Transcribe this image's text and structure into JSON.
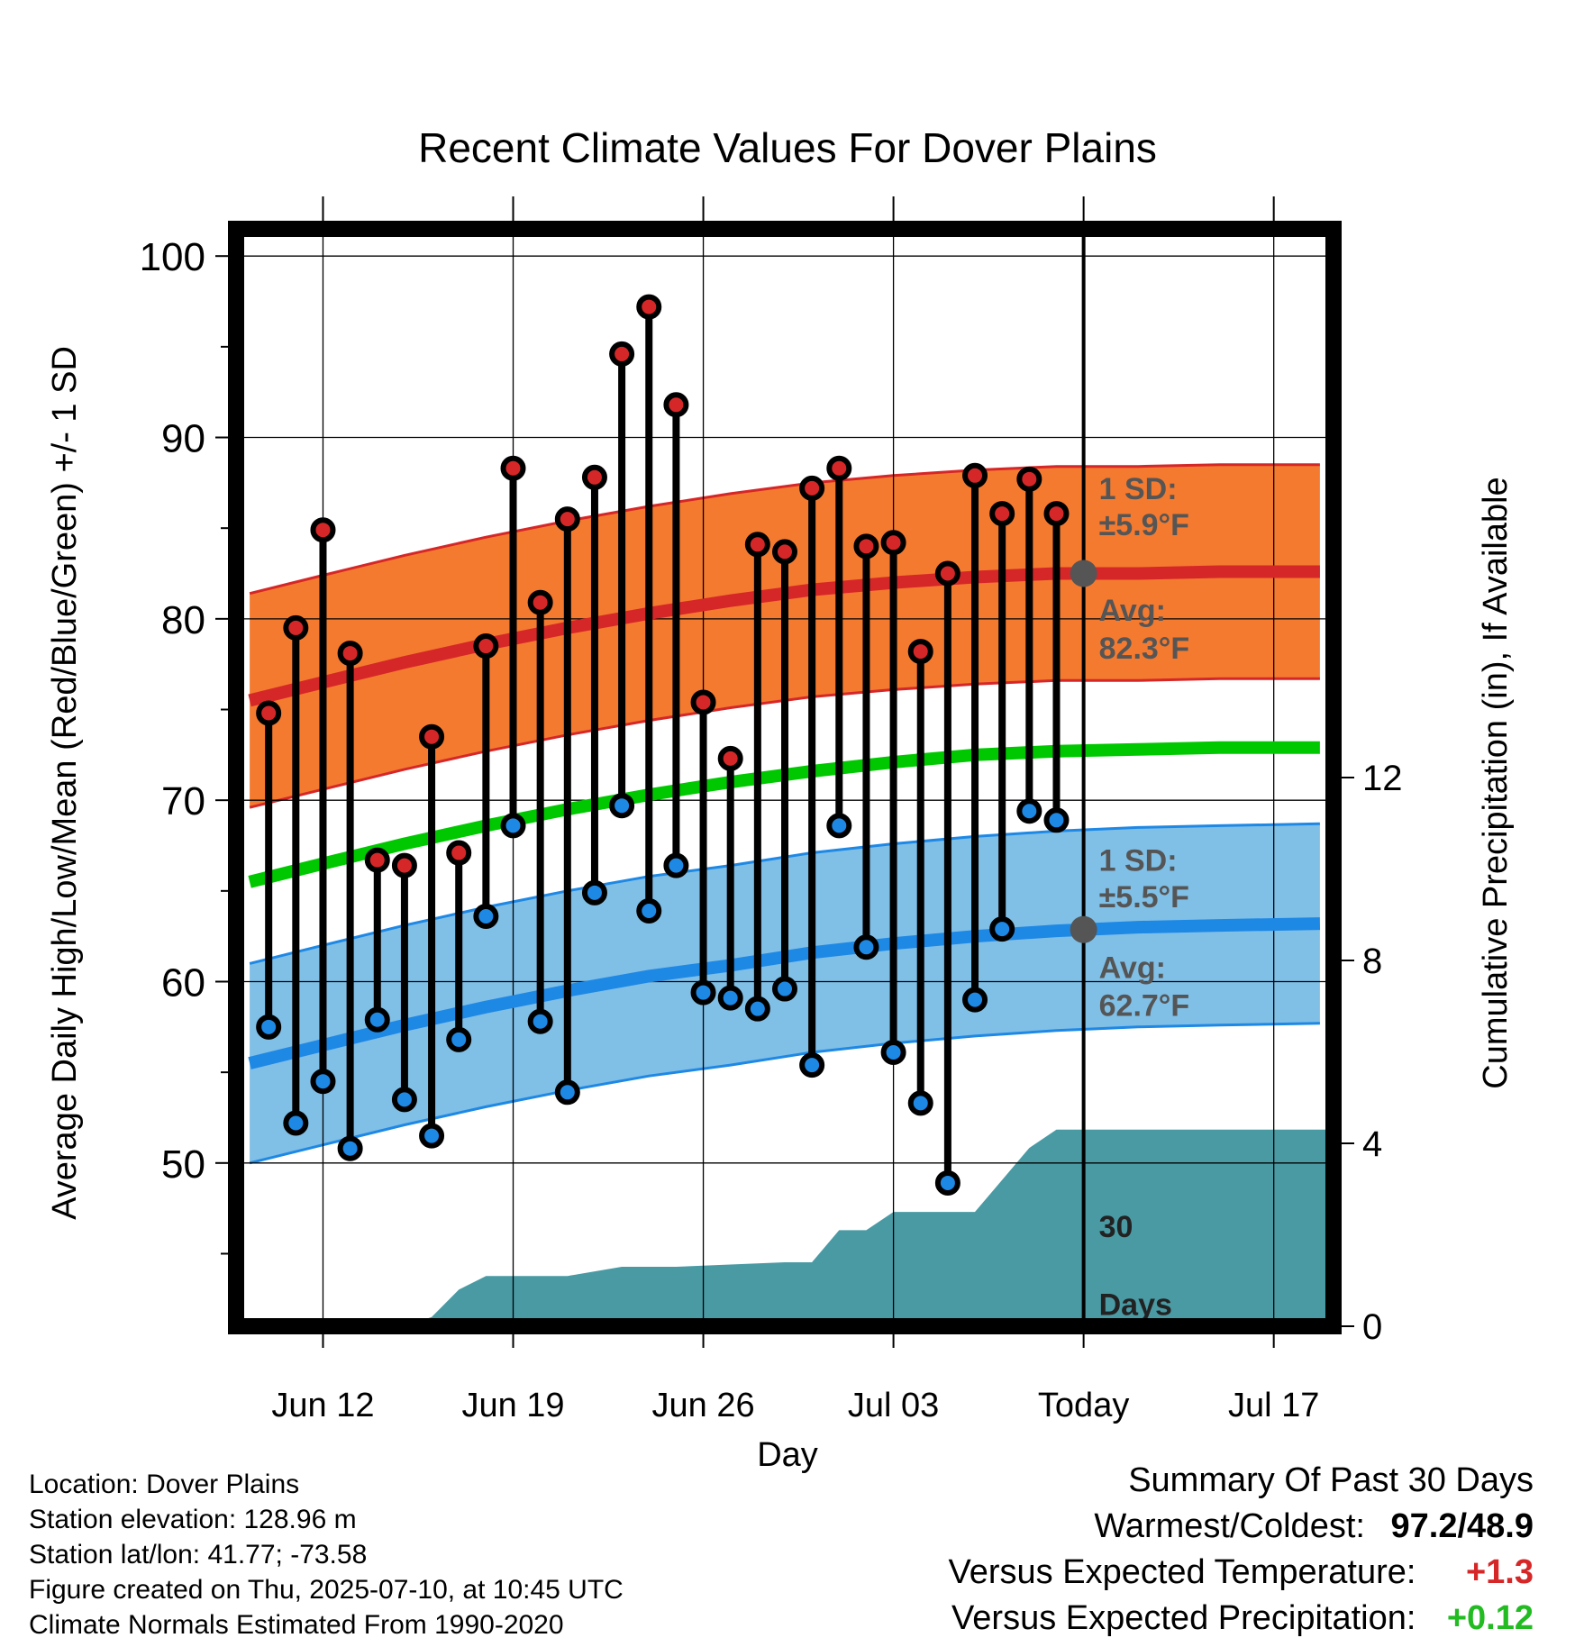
{
  "chart_data": {
    "type": "line",
    "title": "Recent Climate Values For Dover Plains",
    "xlabel": "Day",
    "ylabel": "Average Daily High/Low/Mean (Red/Blue/Green) +/- 1 SD",
    "y2label": "Cumulative Precipitation (in), If Available",
    "x_tick_labels": [
      "Jun 12",
      "Jun 19",
      "Jun 26",
      "Jul 03",
      "Today",
      "Jul 17"
    ],
    "y_ticks": [
      50,
      60,
      70,
      80,
      90,
      100
    ],
    "y2_ticks": [
      0,
      4,
      8,
      12
    ],
    "ylim": [
      41,
      101.5
    ],
    "y2lim": [
      0,
      24
    ],
    "xlim_days_from_jun12": [
      -3.2,
      37.2
    ],
    "today_label": "30\nDays",
    "grid": true,
    "colors": {
      "high": "#d62728",
      "high_band": "#f47a30",
      "low": "#1e88e5",
      "low_band": "#80bfe6",
      "mean": "#00c800",
      "precip": "#4a9aa4",
      "marker_gray": "#555555"
    },
    "annotations": {
      "high_sd_line1": "1 SD:",
      "high_sd_line2": "±5.9°F",
      "high_avg_line1": "Avg:",
      "high_avg_line2": "82.3°F",
      "low_sd_line1": "1 SD:",
      "low_sd_line2": "±5.5°F",
      "low_avg_line1": "Avg:",
      "low_avg_line2": "62.7°F",
      "today_line1": "30",
      "today_line2": "Days"
    },
    "normals": {
      "days": [
        -2.7,
        0,
        3,
        6,
        9,
        12,
        15,
        18,
        21,
        24,
        27,
        30,
        33,
        36.7
      ],
      "high_avg": [
        75.5,
        76.5,
        77.6,
        78.6,
        79.5,
        80.3,
        81.0,
        81.6,
        82.0,
        82.3,
        82.5,
        82.5,
        82.6,
        82.6
      ],
      "high_sd": 5.9,
      "low_avg": [
        55.5,
        56.5,
        57.6,
        58.6,
        59.5,
        60.3,
        60.9,
        61.6,
        62.1,
        62.5,
        62.8,
        63.0,
        63.1,
        63.2
      ],
      "low_sd": 5.5,
      "mean_avg": [
        65.5,
        66.5,
        67.6,
        68.6,
        69.5,
        70.3,
        71.0,
        71.6,
        72.1,
        72.5,
        72.7,
        72.8,
        72.9,
        72.9
      ]
    },
    "series": [
      {
        "name": "Daily High",
        "days": [
          -2,
          -1,
          0,
          1,
          2,
          3,
          4,
          5,
          6,
          7,
          8,
          9,
          10,
          11,
          12,
          13,
          14,
          15,
          16,
          17,
          18,
          19,
          20,
          21,
          22,
          23,
          24,
          25,
          26,
          27,
          28
        ],
        "values": [
          74.8,
          79.5,
          84.9,
          78.1,
          66.7,
          66.4,
          73.5,
          67.1,
          78.5,
          88.3,
          80.9,
          85.5,
          87.8,
          94.6,
          97.2,
          91.8,
          75.4,
          72.3,
          84.1,
          83.7,
          87.2,
          88.3,
          84.0,
          84.2,
          78.2,
          82.5,
          87.9,
          85.8,
          87.7,
          85.8,
          null
        ]
      },
      {
        "name": "Daily Low",
        "days": [
          -2,
          -1,
          0,
          1,
          2,
          3,
          4,
          5,
          6,
          7,
          8,
          9,
          10,
          11,
          12,
          13,
          14,
          15,
          16,
          17,
          18,
          19,
          20,
          21,
          22,
          23,
          24,
          25,
          26,
          27,
          28
        ],
        "values": [
          57.5,
          52.2,
          54.5,
          50.8,
          57.9,
          53.5,
          51.5,
          56.8,
          63.6,
          68.6,
          57.8,
          53.9,
          64.9,
          69.7,
          63.9,
          66.4,
          59.4,
          59.1,
          58.5,
          59.6,
          55.4,
          68.6,
          61.9,
          56.1,
          53.3,
          48.9,
          59.0,
          62.9,
          69.4,
          68.9,
          null
        ]
      },
      {
        "name": "Cumulative Precipitation",
        "days": [
          -3,
          0,
          3,
          4,
          5,
          6,
          7,
          8,
          9,
          10,
          11,
          13,
          17,
          18,
          19,
          20,
          21,
          22,
          23,
          24,
          25,
          26,
          27,
          28,
          37.2
        ],
        "values": [
          0,
          0,
          0,
          0.2,
          0.8,
          1.1,
          1.1,
          1.1,
          1.1,
          1.2,
          1.3,
          1.3,
          1.4,
          1.4,
          2.1,
          2.1,
          2.5,
          2.5,
          2.5,
          2.5,
          3.2,
          3.9,
          4.3,
          4.3,
          4.3
        ]
      }
    ]
  },
  "info": {
    "location": "Location: Dover Plains",
    "elevation": "Station elevation: 128.96 m",
    "latlon": "Station lat/lon: 41.77; -73.58",
    "created": "Figure created on Thu, 2025-07-10, at 10:45 UTC",
    "normals": "Climate Normals Estimated From 1990-2020"
  },
  "summary": {
    "title": "Summary Of Past 30 Days",
    "warm_label": "Warmest/Coldest:",
    "warm_value": "97.2/48.9",
    "temp_label": "Versus Expected Temperature:",
    "temp_value": "+1.3",
    "precip_label": "Versus Expected Precipitation:",
    "precip_value": "+0.12"
  }
}
